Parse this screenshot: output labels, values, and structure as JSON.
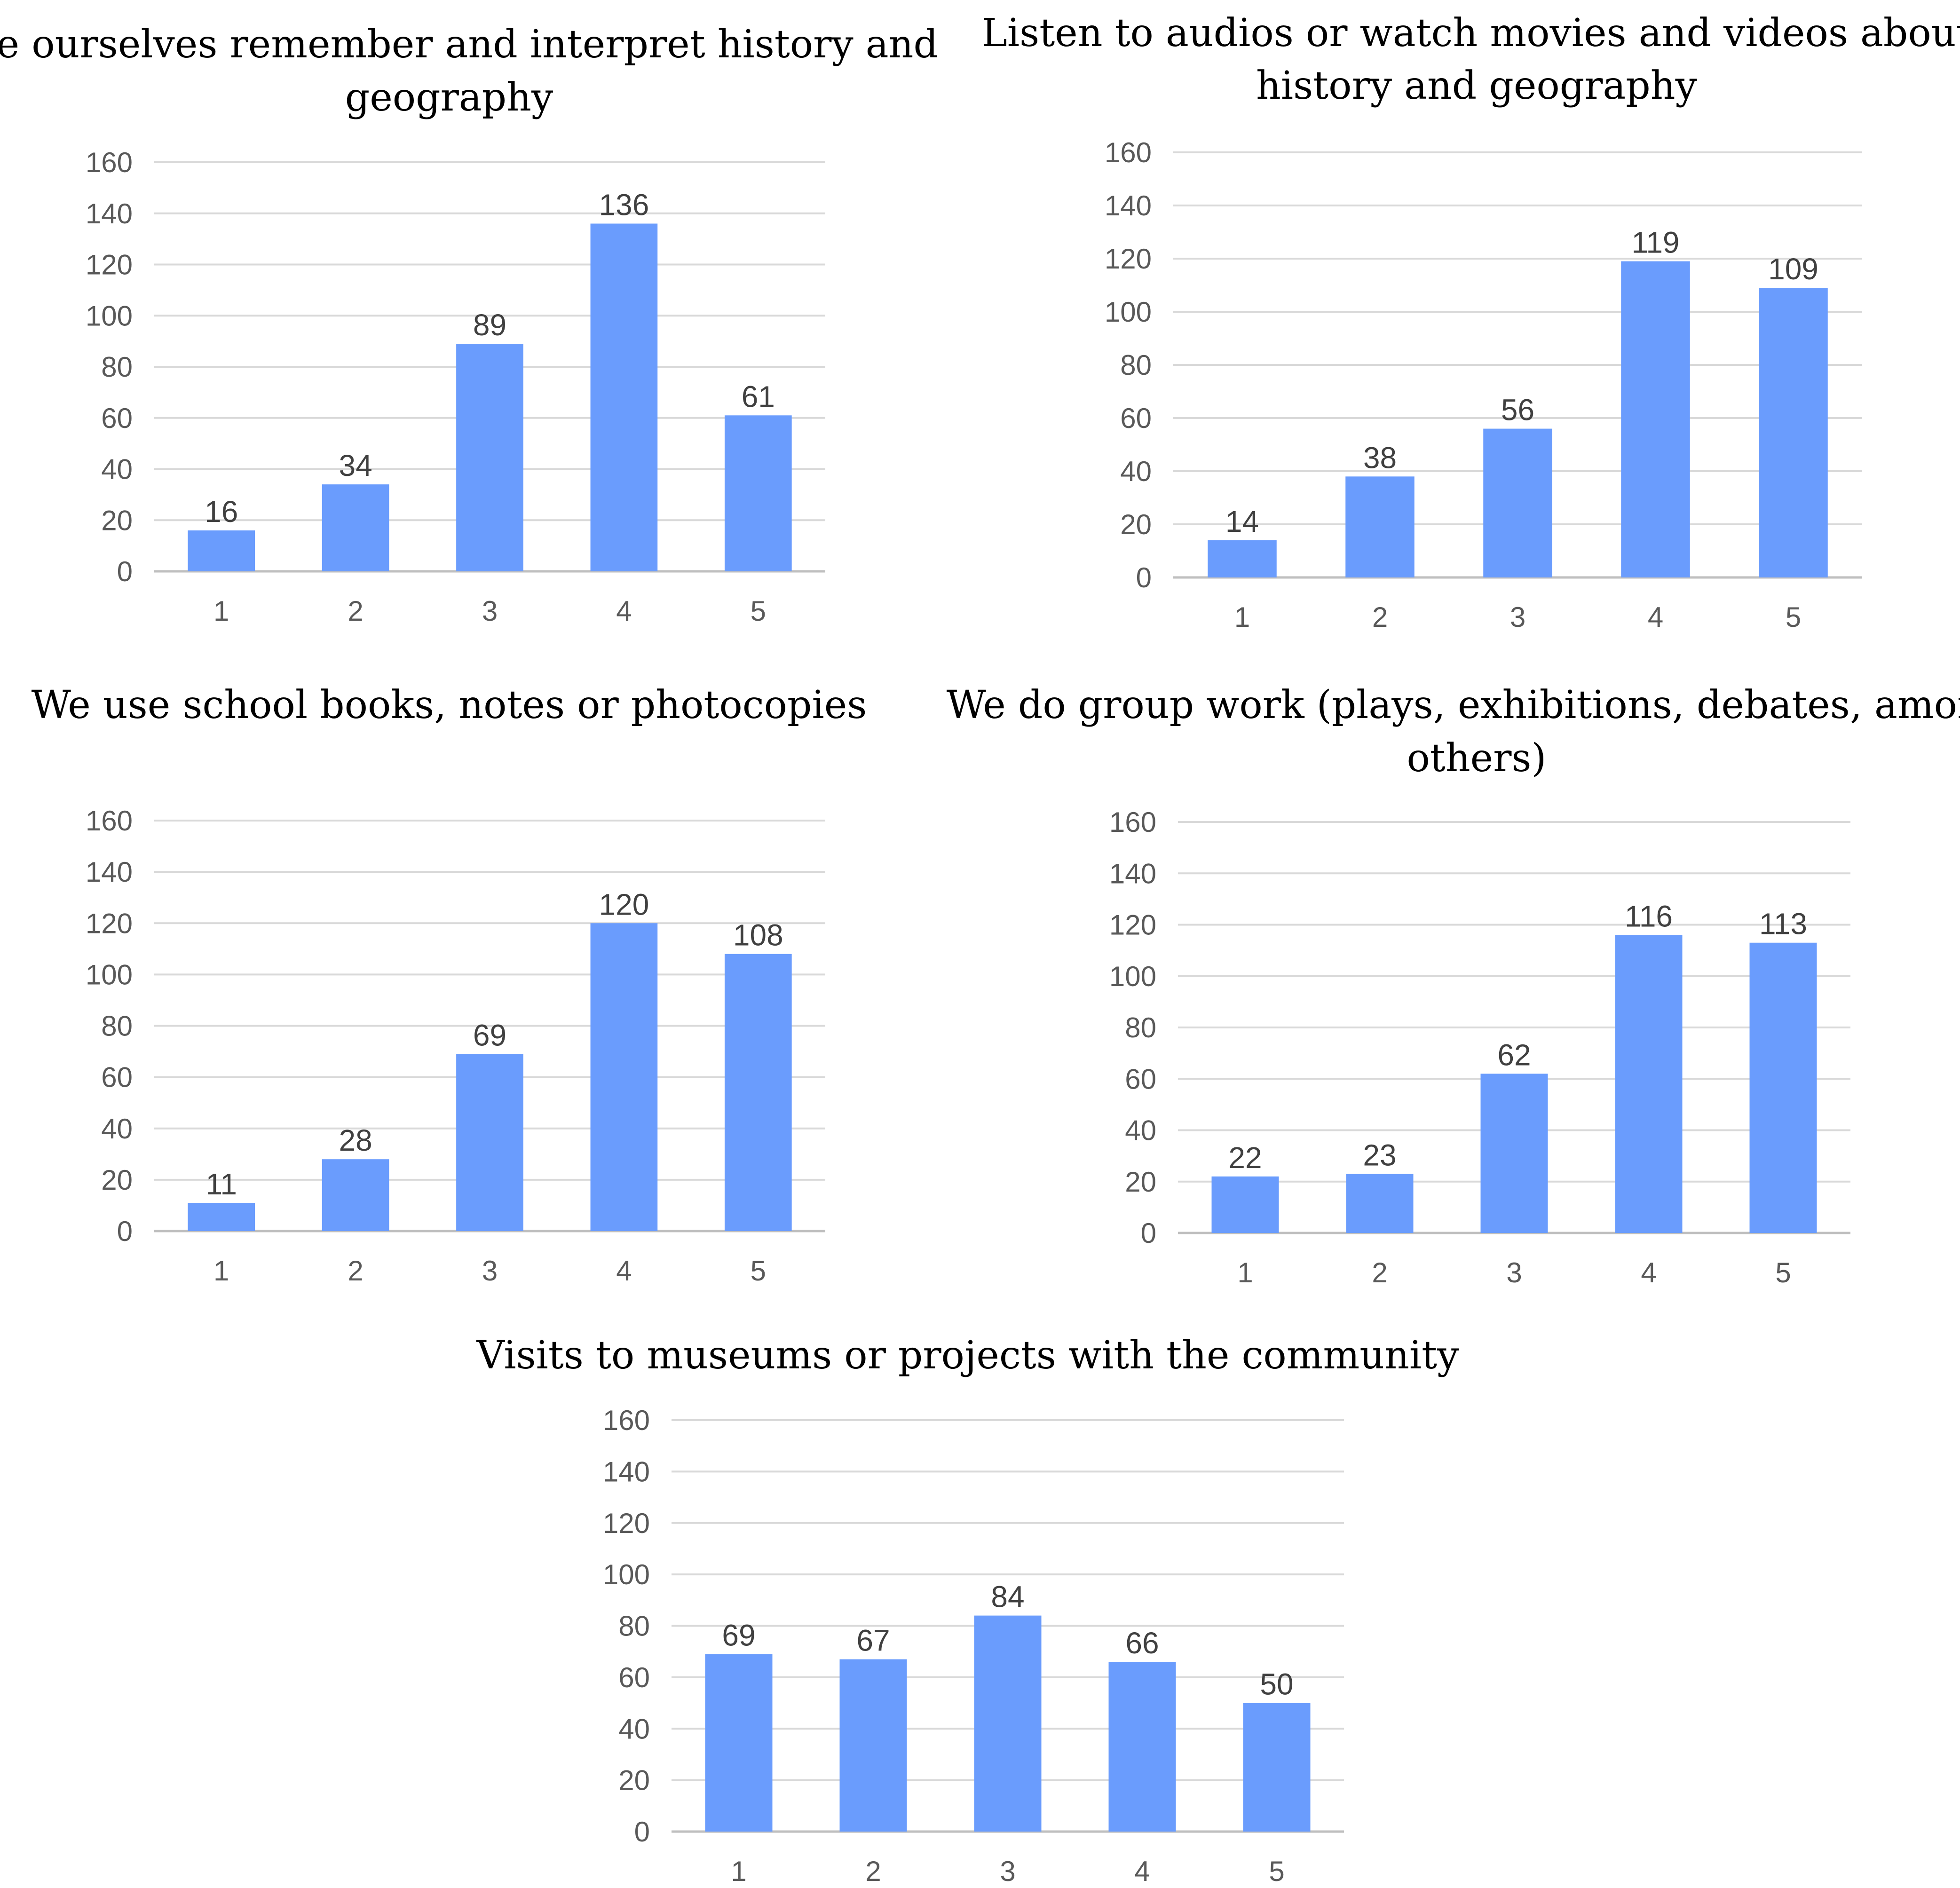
{
  "colors": {
    "bar": "#6a9cfd",
    "grid": "#d9d9d9",
    "axis_text": "#595959",
    "data_label": "#404040"
  },
  "chart_data": [
    {
      "type": "bar",
      "title": [
        "We ourselves remember and interpret history and",
        "geography"
      ],
      "categories": [
        "1",
        "2",
        "3",
        "4",
        "5"
      ],
      "values": [
        16,
        34,
        89,
        136,
        61
      ],
      "xlabel": "",
      "ylabel": "",
      "ylim": [
        0,
        160
      ],
      "yticks": [
        0,
        20,
        40,
        60,
        80,
        100,
        120,
        140,
        160
      ],
      "grid": true
    },
    {
      "type": "bar",
      "title": [
        "Listen to audios or watch movies and videos about",
        "history and geography"
      ],
      "categories": [
        "1",
        "2",
        "3",
        "4",
        "5"
      ],
      "values": [
        14,
        38,
        56,
        119,
        109
      ],
      "xlabel": "",
      "ylabel": "",
      "ylim": [
        0,
        160
      ],
      "yticks": [
        0,
        20,
        40,
        60,
        80,
        100,
        120,
        140,
        160
      ],
      "grid": true
    },
    {
      "type": "bar",
      "title": [
        "We use school books, notes or photocopies"
      ],
      "categories": [
        "1",
        "2",
        "3",
        "4",
        "5"
      ],
      "values": [
        11,
        28,
        69,
        120,
        108
      ],
      "xlabel": "",
      "ylabel": "",
      "ylim": [
        0,
        160
      ],
      "yticks": [
        0,
        20,
        40,
        60,
        80,
        100,
        120,
        140,
        160
      ],
      "grid": true
    },
    {
      "type": "bar",
      "title": [
        "We do group work (plays, exhibitions, debates, among",
        "others)"
      ],
      "categories": [
        "1",
        "2",
        "3",
        "4",
        "5"
      ],
      "values": [
        22,
        23,
        62,
        116,
        113
      ],
      "xlabel": "",
      "ylabel": "",
      "ylim": [
        0,
        160
      ],
      "yticks": [
        0,
        20,
        40,
        60,
        80,
        100,
        120,
        140,
        160
      ],
      "grid": true
    },
    {
      "type": "bar",
      "title": [
        "Visits to museums or projects with the community"
      ],
      "categories": [
        "1",
        "2",
        "3",
        "4",
        "5"
      ],
      "values": [
        69,
        67,
        84,
        66,
        50
      ],
      "xlabel": "",
      "ylabel": "",
      "ylim": [
        0,
        160
      ],
      "yticks": [
        0,
        20,
        40,
        60,
        80,
        100,
        120,
        140,
        160
      ],
      "grid": true
    }
  ]
}
